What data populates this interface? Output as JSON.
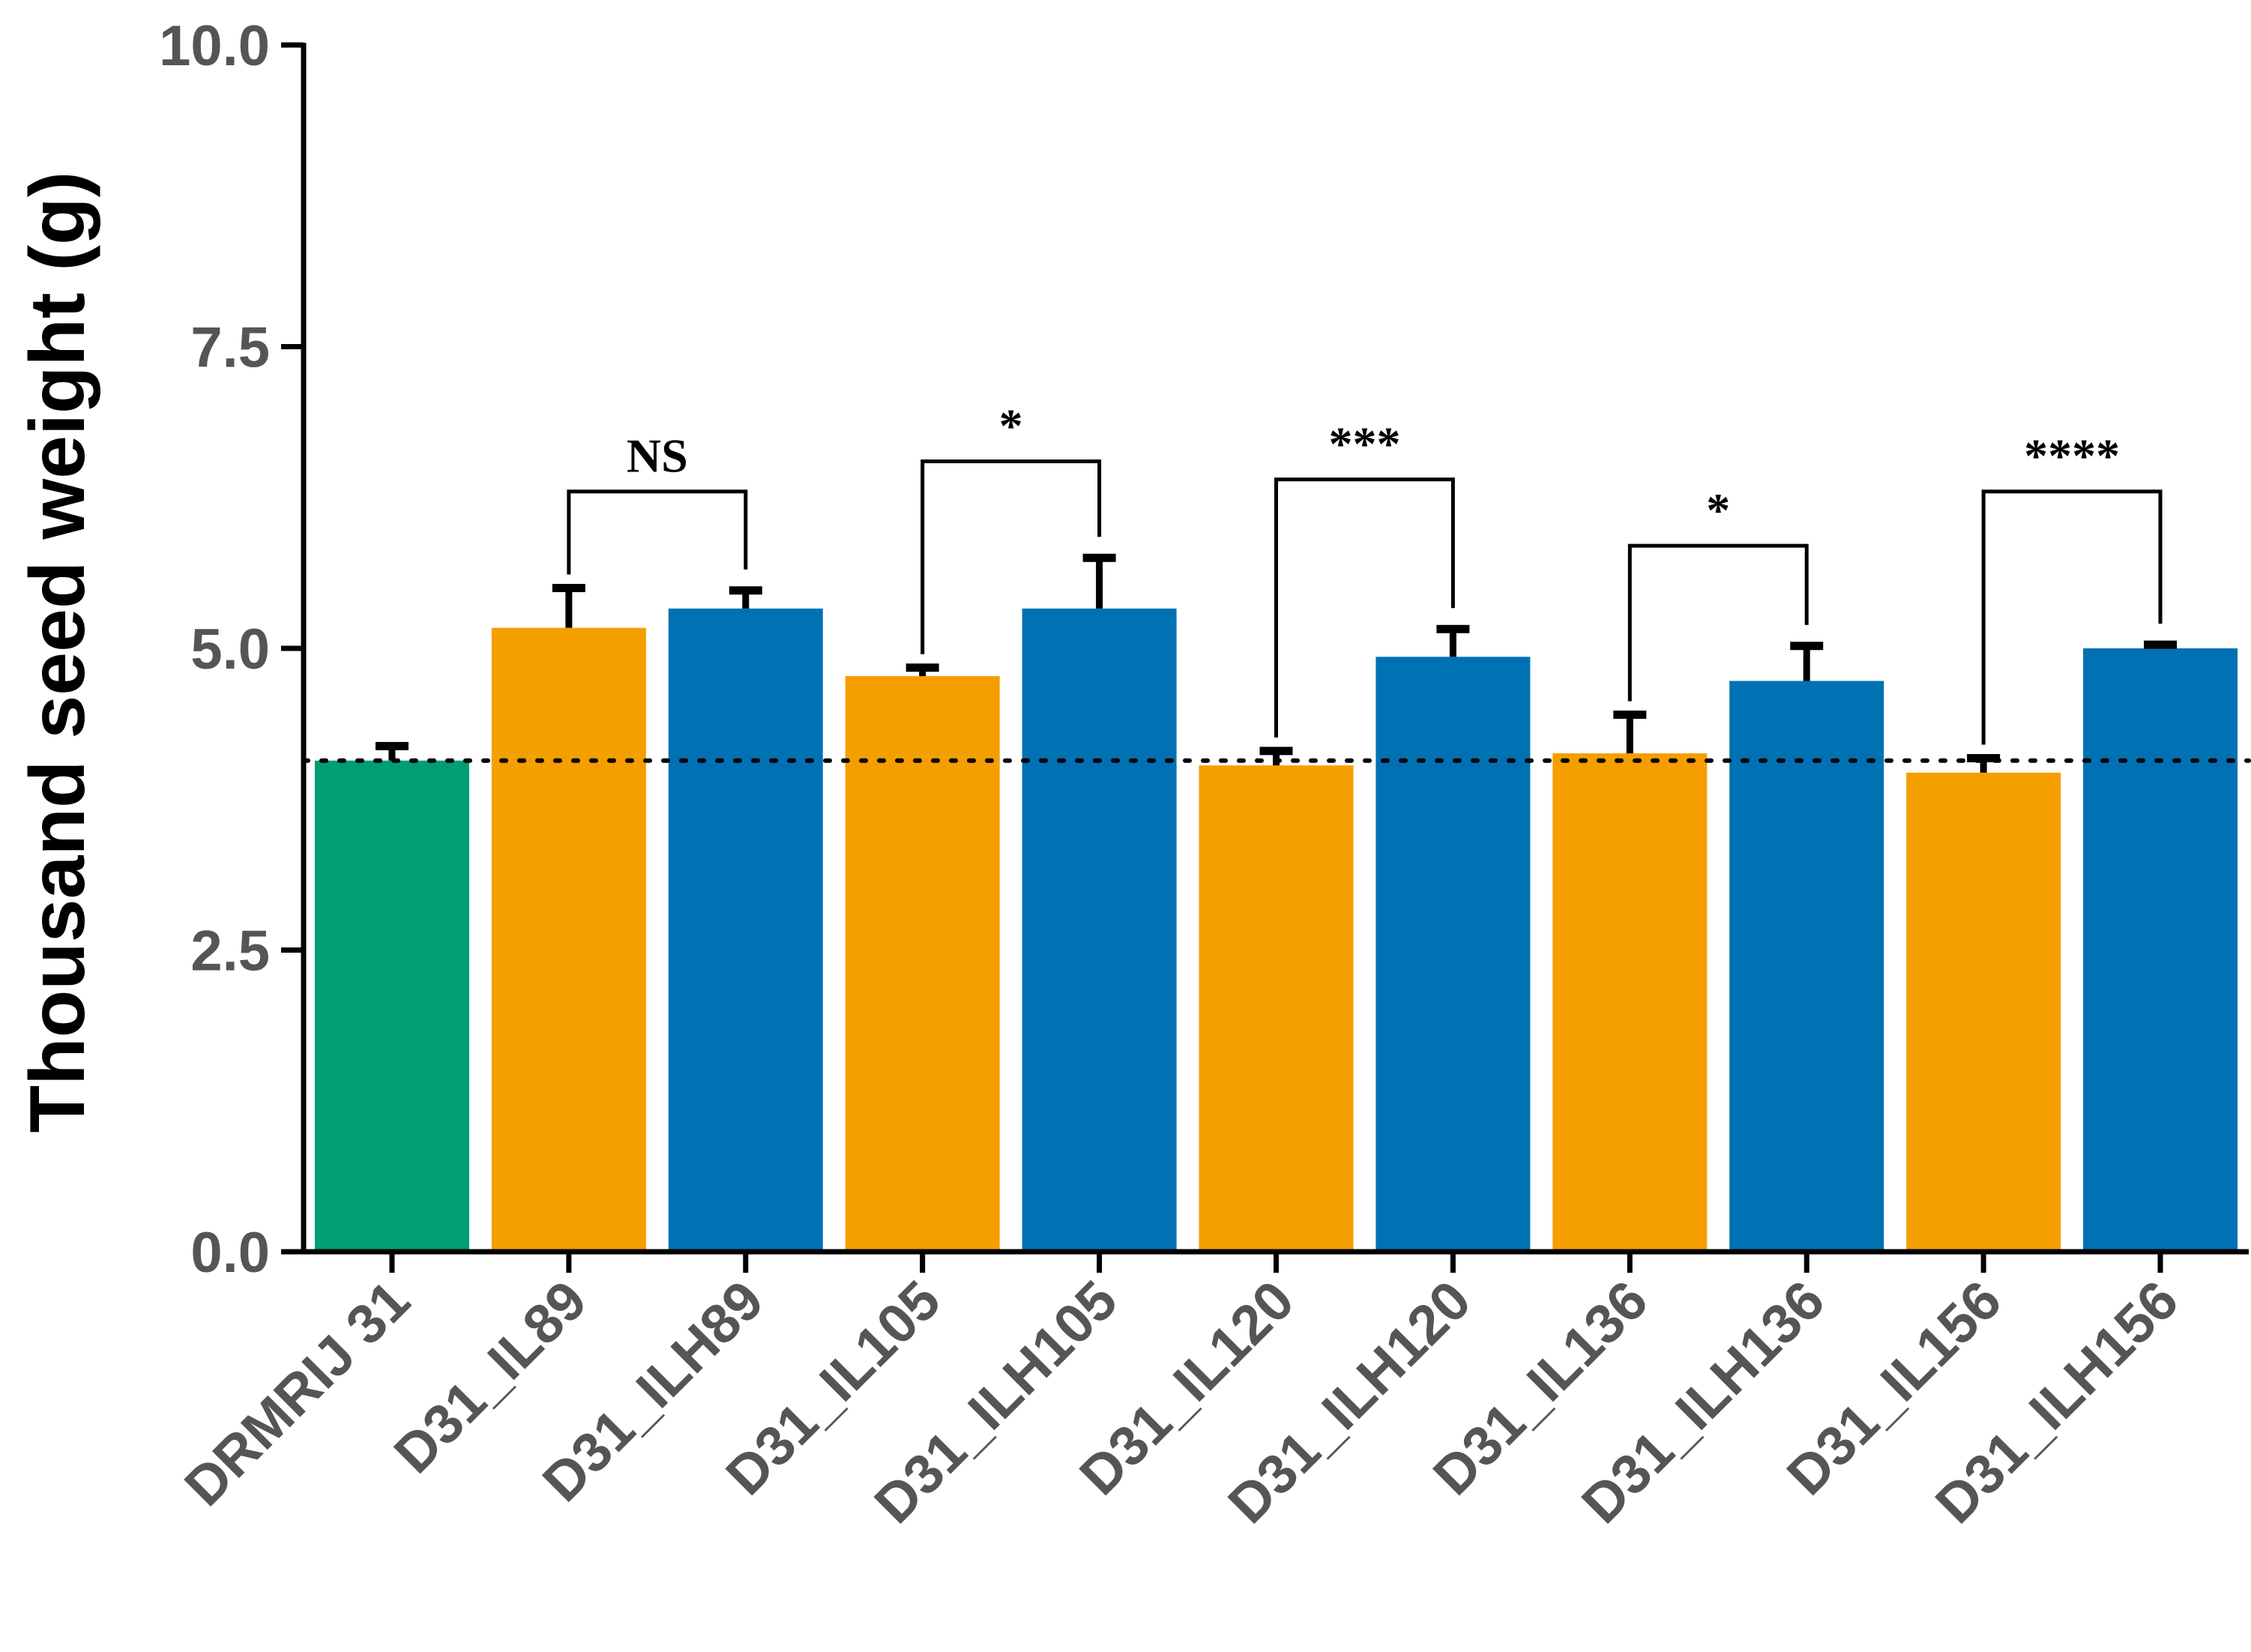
{
  "chart_data": {
    "type": "bar",
    "title": "",
    "xlabel": "",
    "ylabel": "Thousand seed weight (g)",
    "ylim": [
      0,
      10
    ],
    "yticks": [
      0,
      2.5,
      5,
      7.5,
      10
    ],
    "ytick_labels": [
      "0.0",
      "2.5",
      "5.0",
      "7.5",
      "10.0"
    ],
    "categories": [
      "DRMRIJ 31",
      "D31_IL89",
      "D31_ILH89",
      "D31_IL105",
      "D31_ILH105",
      "D31_IL120",
      "D31_ILH120",
      "D31_IL136",
      "D31_ILH136",
      "D31_IL156",
      "D31_ILH156"
    ],
    "values": [
      4.07,
      5.17,
      5.33,
      4.77,
      5.33,
      4.03,
      4.93,
      4.13,
      4.73,
      3.97,
      5.0
    ],
    "errors": [
      0.12,
      0.33,
      0.15,
      0.07,
      0.42,
      0.12,
      0.23,
      0.32,
      0.29,
      0.12,
      0.03
    ],
    "bar_color_groups": [
      "parent",
      "IL",
      "ILH",
      "IL",
      "ILH",
      "IL",
      "ILH",
      "IL",
      "ILH",
      "IL",
      "ILH"
    ],
    "colors": {
      "parent": "#009E73",
      "IL": "#F59E00",
      "ILH": "#0071B3",
      "axis": "#000000",
      "tick_text": "#555555"
    },
    "reference_line": {
      "value": 4.07,
      "style": "dotted"
    },
    "significance": [
      {
        "left": 1,
        "right": 2,
        "label": "NS",
        "level": 6.3
      },
      {
        "left": 3,
        "right": 4,
        "label": "*",
        "level": 6.55
      },
      {
        "left": 5,
        "right": 6,
        "label": "***",
        "level": 6.4
      },
      {
        "left": 7,
        "right": 8,
        "label": "*",
        "level": 5.85
      },
      {
        "left": 9,
        "right": 10,
        "label": "****",
        "level": 6.3
      }
    ]
  }
}
